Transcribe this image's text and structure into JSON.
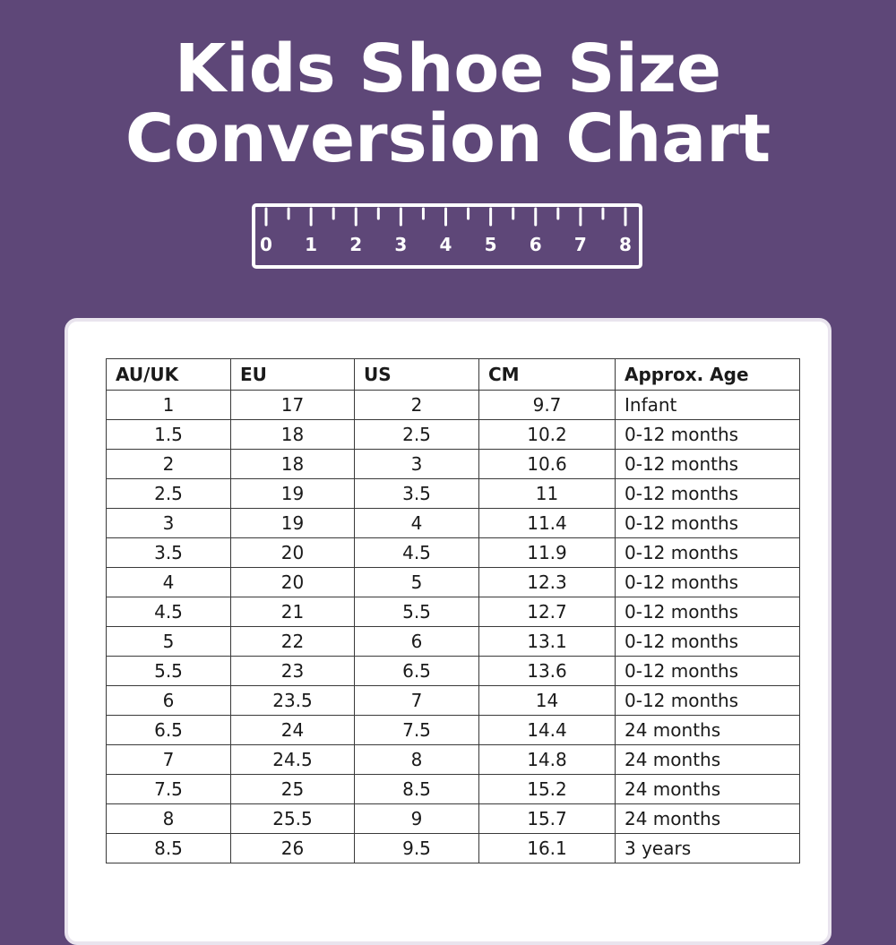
{
  "title": {
    "line1": "Kids Shoe Size",
    "line2": "Conversion Chart"
  },
  "ruler": {
    "icon": "ruler-icon",
    "labels": [
      "0",
      "1",
      "2",
      "3",
      "4",
      "5",
      "6",
      "7",
      "8"
    ]
  },
  "table": {
    "headers": [
      "AU/UK",
      "EU",
      "US",
      "CM",
      "Approx. Age"
    ],
    "rows": [
      [
        "1",
        "17",
        "2",
        "9.7",
        "Infant"
      ],
      [
        "1.5",
        "18",
        "2.5",
        "10.2",
        "0-12 months"
      ],
      [
        "2",
        "18",
        "3",
        "10.6",
        "0-12 months"
      ],
      [
        "2.5",
        "19",
        "3.5",
        "11",
        "0-12 months"
      ],
      [
        "3",
        "19",
        "4",
        "11.4",
        "0-12 months"
      ],
      [
        "3.5",
        "20",
        "4.5",
        "11.9",
        "0-12 months"
      ],
      [
        "4",
        "20",
        "5",
        "12.3",
        "0-12 months"
      ],
      [
        "4.5",
        "21",
        "5.5",
        "12.7",
        "0-12 months"
      ],
      [
        "5",
        "22",
        "6",
        "13.1",
        "0-12 months"
      ],
      [
        "5.5",
        "23",
        "6.5",
        "13.6",
        "0-12 months"
      ],
      [
        "6",
        "23.5",
        "7",
        "14",
        "0-12 months"
      ],
      [
        "6.5",
        "24",
        "7.5",
        "14.4",
        "24 months"
      ],
      [
        "7",
        "24.5",
        "8",
        "14.8",
        "24 months"
      ],
      [
        "7.5",
        "25",
        "8.5",
        "15.2",
        "24 months"
      ],
      [
        "8",
        "25.5",
        "9",
        "15.7",
        "24 months"
      ],
      [
        "8.5",
        "26",
        "9.5",
        "16.1",
        "3 years"
      ]
    ]
  },
  "colors": {
    "background": "#5e4778",
    "card": "#ffffff",
    "text": "#1a1a1a",
    "title": "#ffffff"
  }
}
